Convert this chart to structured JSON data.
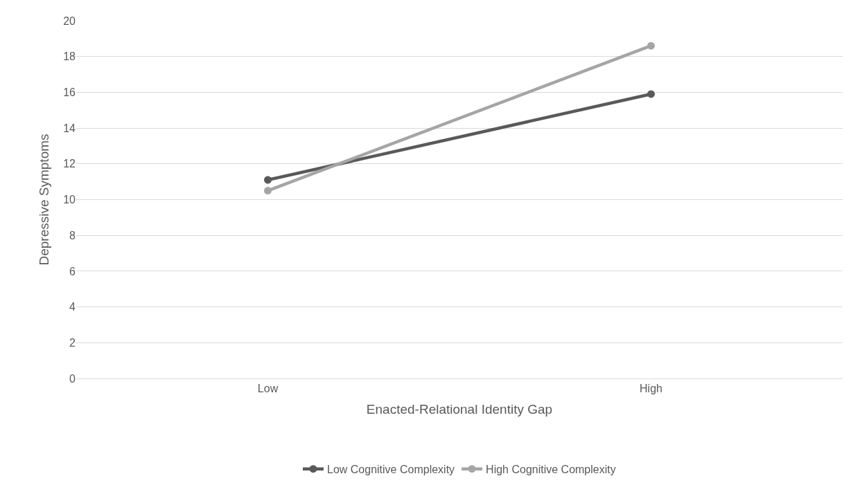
{
  "chart_data": {
    "type": "line",
    "xlabel": "Enacted-Relational Identity Gap",
    "ylabel": "Depressive Symptoms",
    "categories": [
      "Low",
      "High"
    ],
    "series": [
      {
        "name": "Low Cognitive Complexity",
        "color": "#595959",
        "values": [
          11.1,
          15.9
        ]
      },
      {
        "name": "High Cognitive Complexity",
        "color": "#a5a5a5",
        "values": [
          10.5,
          18.6
        ]
      }
    ],
    "ylim": [
      0,
      20
    ],
    "yticks": [
      0,
      2,
      4,
      6,
      8,
      10,
      12,
      14,
      16,
      18,
      20
    ],
    "grid": "y",
    "legend": "bottom",
    "marker": "circle",
    "line_style": "solid"
  }
}
